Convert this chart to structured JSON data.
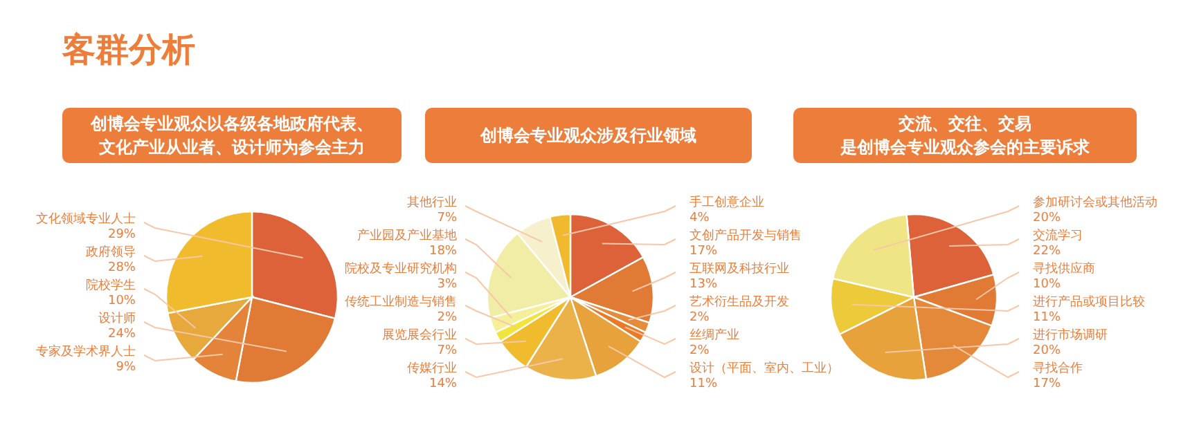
{
  "chart_data": [
    {
      "type": "pie",
      "title": "客群分析",
      "subtitle": "创博会专业观众以各级各地政府代表、文化产业从业者、设计师为参会主力",
      "categories": [
        "文化领域专业人士",
        "设计师",
        "专家及学术界人士",
        "院校学生",
        "政府领导"
      ],
      "values": [
        29,
        24,
        9,
        10,
        28
      ],
      "value_labels": [
        "29%",
        "24%",
        "9%",
        "10%",
        "28%"
      ],
      "colors": [
        "#de6239",
        "#e07a35",
        "#e3843a",
        "#e8a93c",
        "#f0bc2e"
      ]
    },
    {
      "type": "pie",
      "subtitle": "创博会专业观众涉及行业领域",
      "categories": [
        "文创产品开发与销售",
        "互联网及科技行业",
        "艺术衍生品及开发",
        "丝绸产业",
        "设计（平面、室内、工业）",
        "传媒行业",
        "展览展会行业",
        "传统工业制造与销售",
        "院校及专业研究机构",
        "产业园及产业基地",
        "其他行业",
        "手工创意企业"
      ],
      "values": [
        17,
        13,
        2,
        2,
        11,
        14,
        7,
        2,
        3,
        18,
        7,
        4
      ],
      "value_labels": [
        "17%",
        "13%",
        "2%",
        "2%",
        "11%",
        "14%",
        "7%",
        "2%",
        "3%",
        "18%",
        "7%",
        "4%"
      ],
      "colors": [
        "#de6239",
        "#e07a35",
        "#e58c3a",
        "#ec7a25",
        "#e8a23c",
        "#ebb24a",
        "#f0bc2e",
        "#f2e53a",
        "#f5ef9a",
        "#f2eda6",
        "#f7f0cc",
        "#f0b92e"
      ]
    },
    {
      "type": "pie",
      "subtitle": "交流、交往、交易是创博会专业观众参会的主要诉求",
      "categories": [
        "交流学习",
        "寻找供应商",
        "寻找合作",
        "进行市场调研",
        "进行产品或项目比较",
        "参加研讨会或其他活动"
      ],
      "values": [
        22,
        10,
        17,
        20,
        11,
        20
      ],
      "value_labels": [
        "22%",
        "10%",
        "17%",
        "20%",
        "11%",
        "20%"
      ],
      "colors": [
        "#de6239",
        "#e07a35",
        "#e4883a",
        "#e8a23c",
        "#edca3a",
        "#f0e585"
      ]
    }
  ]
}
